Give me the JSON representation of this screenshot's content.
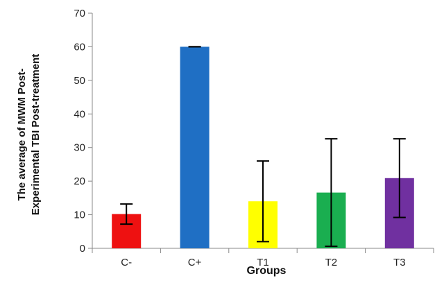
{
  "chart_data": {
    "type": "bar",
    "title": "",
    "xlabel": "Groups",
    "ylabel_lines": [
      "The average of MWM Post-",
      "Experimental TBI Post-treatment"
    ],
    "ylim": [
      0,
      70
    ],
    "yticks": [
      0,
      10,
      20,
      30,
      40,
      50,
      60,
      70
    ],
    "categories": [
      "C-",
      "C+",
      "T1",
      "T2",
      "T3"
    ],
    "values": [
      10.2,
      60,
      14,
      16.6,
      20.9
    ],
    "error": [
      3,
      0,
      12,
      16,
      11.7
    ],
    "colors": [
      "#ee1111",
      "#1f6fc4",
      "#ffff00",
      "#1aae50",
      "#7030a0"
    ],
    "grid": false,
    "legend": "none"
  }
}
